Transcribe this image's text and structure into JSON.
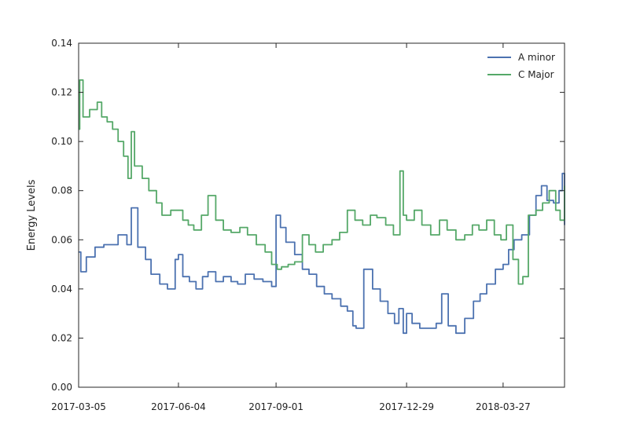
{
  "chart_data": {
    "type": "line",
    "xlabel": "",
    "ylabel": "Energy Levels",
    "x_range": [
      "2017-03-05",
      "2018-05-22"
    ],
    "ylim": [
      0,
      0.14
    ],
    "grid": false,
    "legend_position": "top-right",
    "x_ticks": [
      "2017-03-05",
      "2017-06-04",
      "2017-09-01",
      "2017-12-29",
      "2018-03-27"
    ],
    "y_ticks": [
      "0.00",
      "0.02",
      "0.04",
      "0.06",
      "0.08",
      "0.10",
      "0.12",
      "0.14"
    ],
    "series": [
      {
        "name": "A minor",
        "color": "#4c72b0",
        "x": [
          "2017-03-05",
          "2017-03-07",
          "2017-03-12",
          "2017-03-20",
          "2017-03-28",
          "2017-04-02",
          "2017-04-10",
          "2017-04-18",
          "2017-04-22",
          "2017-04-28",
          "2017-05-05",
          "2017-05-10",
          "2017-05-18",
          "2017-05-25",
          "2017-06-01",
          "2017-06-04",
          "2017-06-08",
          "2017-06-14",
          "2017-06-20",
          "2017-06-26",
          "2017-07-01",
          "2017-07-08",
          "2017-07-15",
          "2017-07-22",
          "2017-07-28",
          "2017-08-04",
          "2017-08-12",
          "2017-08-20",
          "2017-08-28",
          "2017-09-01",
          "2017-09-05",
          "2017-09-10",
          "2017-09-18",
          "2017-09-25",
          "2017-10-01",
          "2017-10-08",
          "2017-10-15",
          "2017-10-22",
          "2017-10-30",
          "2017-11-05",
          "2017-11-10",
          "2017-11-13",
          "2017-11-20",
          "2017-11-28",
          "2017-12-05",
          "2017-12-12",
          "2017-12-18",
          "2017-12-22",
          "2017-12-26",
          "2017-12-29",
          "2018-01-03",
          "2018-01-10",
          "2018-01-18",
          "2018-01-25",
          "2018-01-30",
          "2018-02-05",
          "2018-02-12",
          "2018-02-20",
          "2018-02-28",
          "2018-03-06",
          "2018-03-12",
          "2018-03-20",
          "2018-03-27",
          "2018-04-01",
          "2018-04-06",
          "2018-04-13",
          "2018-04-20",
          "2018-04-26",
          "2018-05-01",
          "2018-05-06",
          "2018-05-12",
          "2018-05-17",
          "2018-05-20",
          "2018-05-22"
        ],
        "values": [
          0.055,
          0.047,
          0.053,
          0.057,
          0.058,
          0.058,
          0.062,
          0.058,
          0.073,
          0.057,
          0.052,
          0.046,
          0.042,
          0.04,
          0.052,
          0.054,
          0.045,
          0.043,
          0.04,
          0.045,
          0.047,
          0.043,
          0.045,
          0.043,
          0.042,
          0.046,
          0.044,
          0.043,
          0.041,
          0.07,
          0.065,
          0.059,
          0.054,
          0.048,
          0.046,
          0.041,
          0.038,
          0.036,
          0.033,
          0.031,
          0.025,
          0.024,
          0.048,
          0.04,
          0.035,
          0.03,
          0.026,
          0.032,
          0.022,
          0.03,
          0.026,
          0.024,
          0.024,
          0.026,
          0.038,
          0.025,
          0.022,
          0.028,
          0.035,
          0.038,
          0.042,
          0.048,
          0.05,
          0.056,
          0.06,
          0.062,
          0.07,
          0.078,
          0.082,
          0.076,
          0.075,
          0.08,
          0.087,
          0.066
        ]
      },
      {
        "name": "C Major",
        "color": "#55a868",
        "x": [
          "2017-03-05",
          "2017-03-06",
          "2017-03-09",
          "2017-03-15",
          "2017-03-22",
          "2017-03-26",
          "2017-03-31",
          "2017-04-05",
          "2017-04-10",
          "2017-04-15",
          "2017-04-19",
          "2017-04-22",
          "2017-04-25",
          "2017-05-02",
          "2017-05-08",
          "2017-05-15",
          "2017-05-20",
          "2017-05-28",
          "2017-06-04",
          "2017-06-08",
          "2017-06-13",
          "2017-06-18",
          "2017-06-25",
          "2017-07-01",
          "2017-07-08",
          "2017-07-15",
          "2017-07-22",
          "2017-07-30",
          "2017-08-06",
          "2017-08-14",
          "2017-08-22",
          "2017-08-28",
          "2017-09-02",
          "2017-09-06",
          "2017-09-12",
          "2017-09-18",
          "2017-09-25",
          "2017-10-01",
          "2017-10-07",
          "2017-10-14",
          "2017-10-22",
          "2017-10-29",
          "2017-11-05",
          "2017-11-12",
          "2017-11-19",
          "2017-11-26",
          "2017-12-02",
          "2017-12-10",
          "2017-12-17",
          "2017-12-23",
          "2017-12-26",
          "2017-12-29",
          "2018-01-05",
          "2018-01-12",
          "2018-01-20",
          "2018-01-28",
          "2018-02-04",
          "2018-02-12",
          "2018-02-20",
          "2018-02-27",
          "2018-03-05",
          "2018-03-12",
          "2018-03-19",
          "2018-03-25",
          "2018-03-30",
          "2018-04-05",
          "2018-04-10",
          "2018-04-14",
          "2018-04-19",
          "2018-04-26",
          "2018-05-02",
          "2018-05-08",
          "2018-05-14",
          "2018-05-18",
          "2018-05-22"
        ],
        "values": [
          0.105,
          0.125,
          0.11,
          0.113,
          0.116,
          0.11,
          0.108,
          0.105,
          0.1,
          0.094,
          0.085,
          0.104,
          0.09,
          0.085,
          0.08,
          0.075,
          0.07,
          0.072,
          0.072,
          0.068,
          0.066,
          0.064,
          0.07,
          0.078,
          0.068,
          0.064,
          0.063,
          0.065,
          0.062,
          0.058,
          0.055,
          0.05,
          0.048,
          0.049,
          0.05,
          0.051,
          0.062,
          0.058,
          0.055,
          0.058,
          0.06,
          0.063,
          0.072,
          0.068,
          0.066,
          0.07,
          0.069,
          0.066,
          0.062,
          0.088,
          0.07,
          0.068,
          0.072,
          0.066,
          0.062,
          0.068,
          0.064,
          0.06,
          0.062,
          0.066,
          0.064,
          0.068,
          0.062,
          0.06,
          0.066,
          0.052,
          0.042,
          0.045,
          0.07,
          0.072,
          0.075,
          0.08,
          0.072,
          0.068,
          0.082
        ]
      }
    ]
  }
}
